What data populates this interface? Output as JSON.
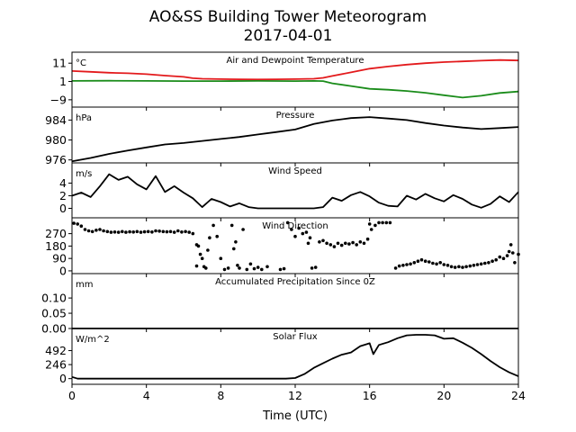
{
  "figure": {
    "title_line1": "AO&SS Building Tower Meteorogram",
    "title_line2": "2017-04-01",
    "xlabel": "Time (UTC)",
    "xticks": [
      0,
      4,
      8,
      12,
      16,
      20,
      24
    ],
    "xlim": [
      0,
      24
    ]
  },
  "colors": {
    "air": "#e31a1c",
    "dewpoint": "#1a8c1a",
    "black": "#000000"
  },
  "chart_data": [
    {
      "type": "line",
      "title": "Air and Dewpoint Temperature",
      "unit": "°C",
      "ylim": [
        -13,
        17
      ],
      "yticks": [
        11,
        1,
        -9
      ],
      "series": [
        {
          "key": "air",
          "color": "#e31a1c",
          "x": [
            0,
            1,
            2,
            3,
            4,
            5,
            6,
            6.5,
            7,
            8,
            9,
            10,
            11,
            12,
            13,
            13.5,
            14,
            15,
            16,
            17,
            18,
            19,
            20,
            21,
            22,
            23,
            24
          ],
          "y": [
            6.7,
            6.3,
            5.8,
            5.5,
            5.0,
            4.2,
            3.5,
            2.8,
            2.5,
            2.3,
            2.2,
            2.1,
            2.2,
            2.3,
            2.5,
            3.0,
            4.0,
            6.0,
            8.0,
            9.2,
            10.2,
            11.0,
            11.6,
            12.0,
            12.4,
            12.7,
            12.5
          ]
        },
        {
          "key": "dewpoint",
          "color": "#1a8c1a",
          "x": [
            0,
            2,
            4,
            6,
            8,
            10,
            12,
            13,
            13.5,
            14,
            15,
            16,
            17,
            18,
            19,
            20,
            21,
            22,
            23,
            24
          ],
          "y": [
            1.3,
            1.4,
            1.3,
            1.2,
            1.2,
            1.3,
            1.2,
            1.3,
            1.2,
            0.0,
            -1.5,
            -3.0,
            -3.5,
            -4.2,
            -5.2,
            -6.5,
            -7.8,
            -6.8,
            -5.3,
            -4.5
          ]
        }
      ]
    },
    {
      "type": "line",
      "title": "Pressure",
      "unit": "hPa",
      "ylim": [
        975.4,
        986.6
      ],
      "yticks": [
        984,
        980,
        976
      ],
      "series": [
        {
          "key": "pressure",
          "color": "#000000",
          "x": [
            0,
            1,
            2,
            3,
            4,
            5,
            6,
            7,
            8,
            9,
            10,
            11,
            12,
            13,
            14,
            15,
            16,
            17,
            18,
            19,
            20,
            21,
            22,
            23,
            24
          ],
          "y": [
            975.7,
            976.4,
            977.2,
            977.9,
            978.5,
            979.1,
            979.4,
            979.8,
            980.2,
            980.6,
            981.1,
            981.6,
            982.1,
            983.2,
            983.9,
            984.4,
            984.6,
            984.3,
            984.0,
            983.4,
            982.9,
            982.5,
            982.2,
            982.4,
            982.6
          ]
        }
      ]
    },
    {
      "type": "line",
      "title": "Wind Speed",
      "unit": "m/s",
      "ylim": [
        -1.5,
        7.2
      ],
      "yticks": [
        4,
        2,
        0
      ],
      "series": [
        {
          "key": "wind_speed",
          "color": "#000000",
          "x": [
            0,
            0.5,
            1,
            1.5,
            2,
            2.5,
            3,
            3.5,
            4,
            4.5,
            5,
            5.5,
            6,
            6.5,
            7,
            7.5,
            8,
            8.5,
            9,
            9.5,
            10,
            11,
            12,
            13,
            13.5,
            14,
            14.5,
            15,
            15.5,
            16,
            16.5,
            17,
            17.5,
            18,
            18.5,
            19,
            19.5,
            20,
            20.5,
            21,
            21.5,
            22,
            22.5,
            23,
            23.5,
            24
          ],
          "y": [
            2.0,
            2.5,
            1.8,
            3.5,
            5.4,
            4.5,
            5.0,
            3.8,
            3.0,
            5.1,
            2.6,
            3.5,
            2.5,
            1.6,
            0.2,
            1.5,
            1.0,
            0.3,
            0.8,
            0.2,
            0.0,
            0.0,
            0.0,
            0.0,
            0.2,
            1.7,
            1.2,
            2.1,
            2.6,
            1.9,
            0.9,
            0.4,
            0.3,
            2.0,
            1.4,
            2.3,
            1.6,
            1.1,
            2.1,
            1.5,
            0.6,
            0.1,
            0.7,
            1.9,
            1.0,
            2.6
          ]
        }
      ]
    },
    {
      "type": "scatter",
      "title": "Wind Direction",
      "unit": "",
      "ylim": [
        -20,
        385
      ],
      "yticks": [
        270,
        180,
        90,
        0
      ],
      "series": [
        {
          "key": "wind_direction",
          "color": "#000000",
          "x": [
            0.1,
            0.3,
            0.5,
            0.7,
            0.9,
            1.1,
            1.3,
            1.5,
            1.7,
            1.9,
            2.1,
            2.3,
            2.5,
            2.7,
            2.9,
            3.1,
            3.3,
            3.5,
            3.7,
            3.9,
            4.1,
            4.3,
            4.5,
            4.7,
            4.9,
            5.1,
            5.3,
            5.5,
            5.7,
            5.9,
            6.1,
            6.3,
            6.5,
            6.7,
            6.7,
            6.8,
            6.9,
            7.0,
            7.1,
            7.2,
            7.3,
            7.4,
            7.6,
            7.8,
            8.0,
            8.2,
            8.4,
            8.6,
            8.7,
            8.8,
            8.9,
            9.0,
            9.2,
            9.4,
            9.6,
            9.8,
            10.0,
            10.2,
            10.5,
            11.2,
            11.4,
            11.6,
            11.8,
            12.0,
            12.2,
            12.4,
            12.6,
            12.7,
            12.8,
            12.9,
            13.1,
            13.3,
            13.5,
            13.7,
            13.9,
            14.1,
            14.3,
            14.5,
            14.7,
            14.9,
            15.1,
            15.3,
            15.5,
            15.7,
            15.9,
            16.0,
            16.1,
            16.3,
            16.5,
            16.7,
            16.9,
            17.1,
            17.4,
            17.6,
            17.8,
            18.0,
            18.2,
            18.4,
            18.6,
            18.8,
            19.0,
            19.2,
            19.4,
            19.6,
            19.8,
            20.0,
            20.2,
            20.4,
            20.6,
            20.8,
            21.0,
            21.2,
            21.4,
            21.6,
            21.8,
            22.0,
            22.2,
            22.4,
            22.6,
            22.8,
            23.0,
            23.2,
            23.4,
            23.5,
            23.6,
            23.7,
            23.8,
            24.0
          ],
          "y": [
            345,
            340,
            325,
            300,
            290,
            285,
            295,
            300,
            290,
            285,
            280,
            282,
            280,
            285,
            280,
            283,
            282,
            285,
            280,
            283,
            285,
            282,
            290,
            288,
            285,
            283,
            285,
            280,
            290,
            282,
            285,
            280,
            270,
            190,
            35,
            180,
            120,
            90,
            30,
            20,
            150,
            240,
            330,
            250,
            90,
            10,
            20,
            330,
            160,
            210,
            40,
            20,
            300,
            10,
            50,
            15,
            25,
            10,
            30,
            10,
            15,
            350,
            300,
            250,
            310,
            270,
            280,
            200,
            240,
            20,
            25,
            210,
            220,
            200,
            190,
            175,
            200,
            185,
            200,
            195,
            205,
            190,
            210,
            200,
            230,
            340,
            300,
            330,
            350,
            350,
            350,
            350,
            20,
            35,
            40,
            45,
            50,
            60,
            70,
            80,
            70,
            65,
            55,
            50,
            60,
            45,
            40,
            30,
            25,
            30,
            25,
            30,
            35,
            40,
            45,
            50,
            55,
            60,
            70,
            80,
            100,
            90,
            110,
            140,
            190,
            130,
            60,
            120
          ]
        }
      ]
    },
    {
      "type": "line",
      "title": "Accumulated Precipitation Since 0Z",
      "unit": "mm",
      "ylim": [
        0,
        0.18
      ],
      "yticks": [
        0.1,
        0.05,
        0.0
      ],
      "series": [
        {
          "key": "precip",
          "color": "#000000",
          "x": [
            0,
            24
          ],
          "y": [
            0,
            0
          ]
        }
      ]
    },
    {
      "type": "line",
      "title": "Solar Flux",
      "unit": "W/m^2",
      "ylim": [
        -100,
        880
      ],
      "yticks": [
        492,
        246,
        0
      ],
      "series": [
        {
          "key": "solar",
          "color": "#000000",
          "x": [
            0,
            0.3,
            1,
            2,
            4,
            6,
            8,
            10,
            11,
            11.5,
            12,
            12.5,
            13,
            13.5,
            14,
            14.5,
            15,
            15.5,
            16,
            16.2,
            16.5,
            17,
            17.5,
            18,
            18.5,
            19,
            19.5,
            20,
            20.5,
            21,
            21.5,
            22,
            22.5,
            23,
            23.5,
            24
          ],
          "y": [
            30,
            0,
            0,
            0,
            0,
            0,
            0,
            0,
            0,
            0,
            10,
            80,
            190,
            270,
            350,
            420,
            460,
            570,
            620,
            430,
            590,
            640,
            710,
            760,
            770,
            770,
            760,
            700,
            710,
            630,
            540,
            430,
            310,
            200,
            110,
            40
          ]
        }
      ]
    }
  ]
}
